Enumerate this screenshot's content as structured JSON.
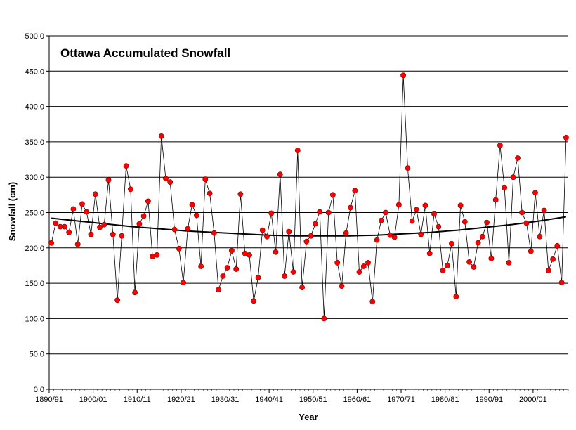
{
  "chart_data": {
    "type": "line",
    "title": "Ottawa Accumulated Snowfall",
    "xlabel": "Year",
    "ylabel": "Snowfall (cm)",
    "ylim": [
      0,
      500
    ],
    "yticks": [
      "0.0",
      "50.0",
      "100.0",
      "150.0",
      "200.0",
      "250.0",
      "300.0",
      "350.0",
      "400.0",
      "450.0",
      "500.0"
    ],
    "xticks": [
      "1890/91",
      "1900/01",
      "1910/11",
      "1920/21",
      "1930/31",
      "1940/41",
      "1950/51",
      "1960/61",
      "1970/71",
      "1980/81",
      "1990/91",
      "2000/01"
    ],
    "grid": true,
    "series_color": "#000000",
    "marker_color": "#ff0000",
    "trend_color": "#000000",
    "series": [
      {
        "values": [
          207,
          235,
          230,
          230,
          222,
          255,
          205,
          262,
          251,
          219,
          276,
          229,
          233,
          296,
          219,
          126,
          217,
          316,
          283,
          137,
          234,
          245,
          266,
          188,
          190,
          358,
          298,
          293,
          226,
          199,
          151,
          227,
          261,
          246,
          174,
          297,
          277,
          221,
          141,
          160,
          172,
          196,
          170,
          276,
          192,
          190,
          125,
          158,
          225,
          216,
          249,
          194,
          304,
          160,
          223,
          166,
          338,
          144,
          209,
          217,
          234,
          251,
          100,
          250,
          275,
          179,
          146,
          221,
          257,
          281,
          166,
          174,
          179,
          124,
          211,
          239,
          250,
          218,
          215,
          261,
          444,
          313,
          238,
          254,
          219,
          260,
          192,
          248,
          230,
          168,
          175,
          206,
          131,
          260,
          237,
          180,
          173,
          207,
          216,
          236,
          185,
          268,
          345,
          285,
          179,
          300,
          327,
          250,
          235,
          195,
          278,
          216,
          253,
          168,
          184,
          203,
          151,
          356
        ]
      },
      {
        "values": [
          242,
          238,
          234,
          230,
          227,
          224,
          222,
          220,
          218,
          217,
          217,
          217,
          218,
          220,
          222,
          225,
          229,
          233,
          238,
          244
        ]
      }
    ]
  }
}
